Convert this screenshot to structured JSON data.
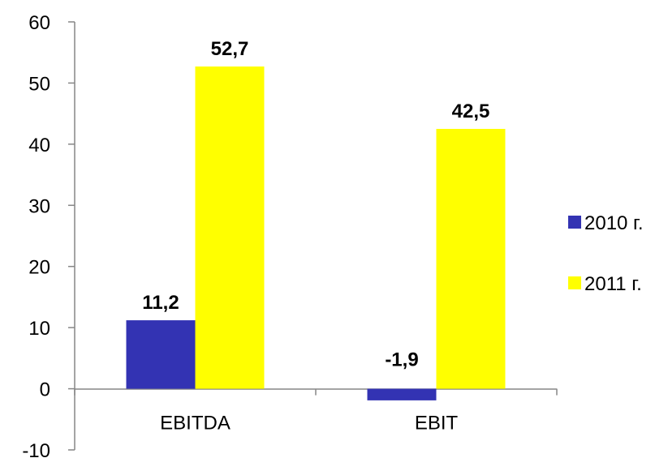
{
  "chart_data": {
    "type": "bar",
    "categories": [
      "EBITDA",
      "EBIT"
    ],
    "series": [
      {
        "name": "2010 г.",
        "values": [
          11.2,
          -1.9
        ],
        "labels": [
          "11,2",
          "-1,9"
        ],
        "color": "#3333B3"
      },
      {
        "name": "2011 г.",
        "values": [
          52.7,
          42.5
        ],
        "labels": [
          "52,7",
          "42,5"
        ],
        "color": "#FFFF00"
      }
    ],
    "y_ticks": [
      60,
      50,
      40,
      30,
      20,
      10,
      0,
      -10
    ],
    "ylim": [
      -10,
      60
    ],
    "grid": false,
    "legend_position": "right"
  }
}
